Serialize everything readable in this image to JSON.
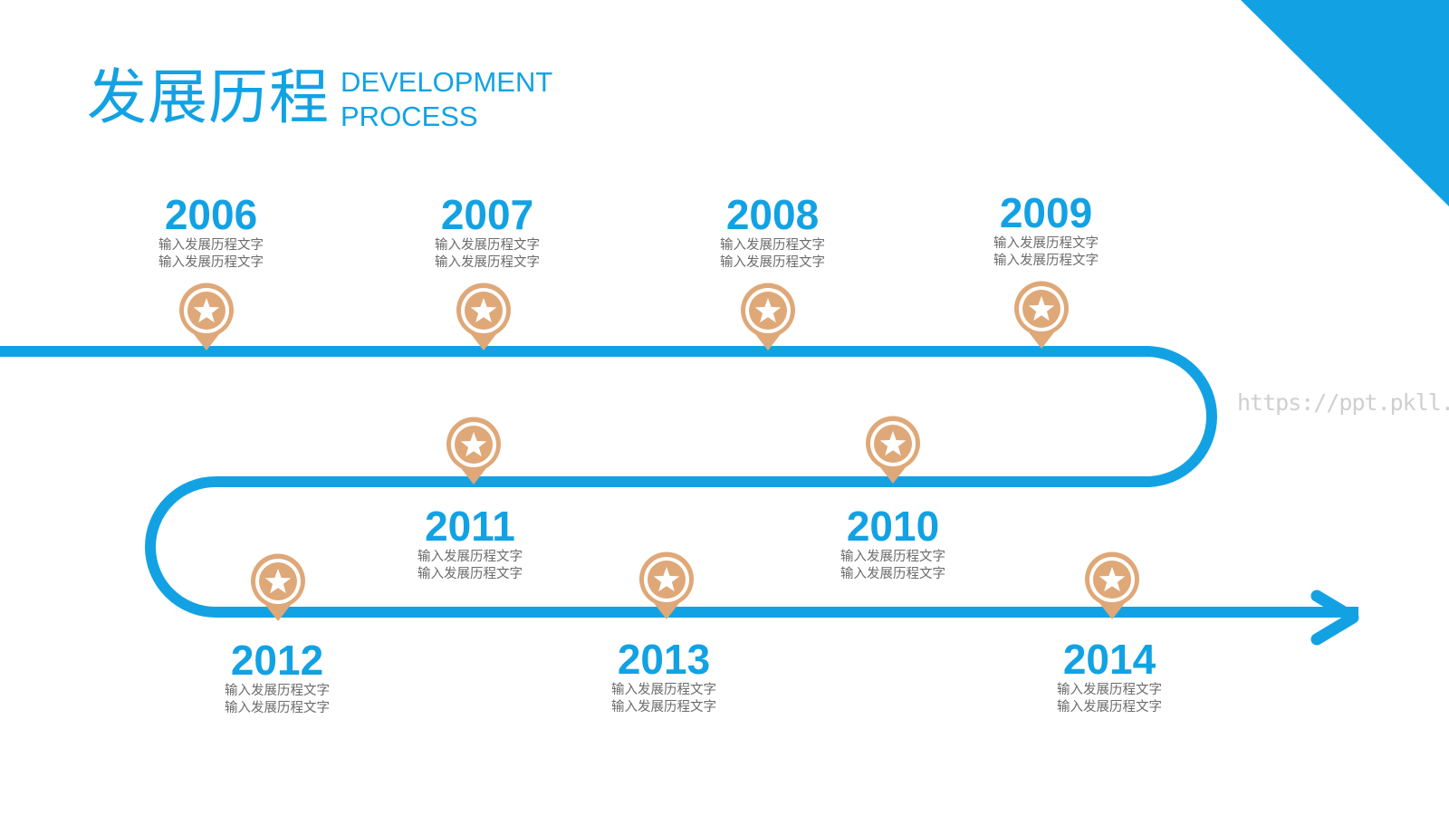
{
  "title": {
    "cn": "发展历程",
    "en_line1": "DEVELOPMENT",
    "en_line2": "PROCESS"
  },
  "watermark": "https://ppt.pkll.de",
  "colors": {
    "accent": "#12a2e4",
    "marker": "#dfa878",
    "text": "#6b6b6b"
  },
  "marker_icon": "star-pin-icon",
  "milestones": [
    {
      "year": "2006",
      "line1": "输入发展历程文字",
      "line2": "输入发展历程文字"
    },
    {
      "year": "2007",
      "line1": "输入发展历程文字",
      "line2": "输入发展历程文字"
    },
    {
      "year": "2008",
      "line1": "输入发展历程文字",
      "line2": "输入发展历程文字"
    },
    {
      "year": "2009",
      "line1": "输入发展历程文字",
      "line2": "输入发展历程文字"
    },
    {
      "year": "2010",
      "line1": "输入发展历程文字",
      "line2": "输入发展历程文字"
    },
    {
      "year": "2011",
      "line1": "输入发展历程文字",
      "line2": "输入发展历程文字"
    },
    {
      "year": "2012",
      "line1": "输入发展历程文字",
      "line2": "输入发展历程文字"
    },
    {
      "year": "2013",
      "line1": "输入发展历程文字",
      "line2": "输入发展历程文字"
    },
    {
      "year": "2014",
      "line1": "输入发展历程文字",
      "line2": "输入发展历程文字"
    }
  ]
}
